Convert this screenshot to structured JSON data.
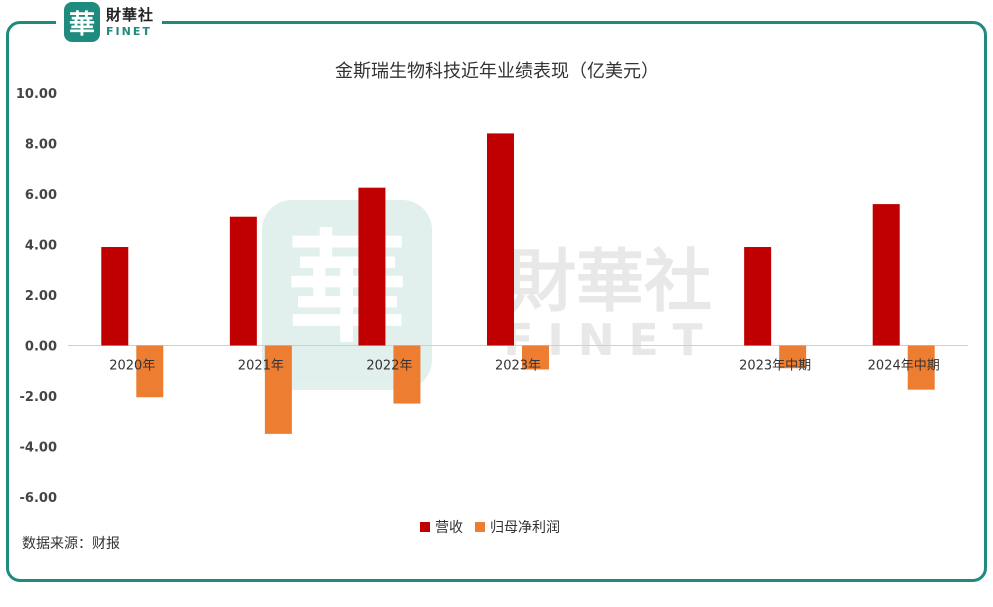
{
  "logo": {
    "seal_char": "華",
    "cn": "財華社",
    "en": "FINET"
  },
  "watermark": {
    "cn": "財華社",
    "en": "FINET",
    "seal_char": "華"
  },
  "source_note": "数据来源：财报",
  "colors": {
    "revenue": "#c00000",
    "net_profit": "#ed7d31",
    "frame": "#1f8a7e"
  },
  "chart_data": {
    "type": "bar",
    "title": "金斯瑞生物科技近年业绩表现（亿美元）",
    "categories": [
      "2020年",
      "2021年",
      "2022年",
      "2023年",
      "",
      "2023年中期",
      "2024年中期"
    ],
    "series": [
      {
        "name": "营收",
        "values": [
          3.9,
          5.1,
          6.25,
          8.4,
          null,
          3.9,
          5.6
        ]
      },
      {
        "name": "归母净利润",
        "values": [
          -2.05,
          -3.5,
          -2.3,
          -0.95,
          null,
          -0.9,
          -1.75
        ]
      }
    ],
    "ylim": [
      -6,
      10
    ],
    "yticks": [
      "10.00",
      "8.00",
      "6.00",
      "4.00",
      "2.00",
      "0.00",
      "-2.00",
      "-4.00",
      "-6.00"
    ],
    "grid": false,
    "legend": "bottom"
  }
}
